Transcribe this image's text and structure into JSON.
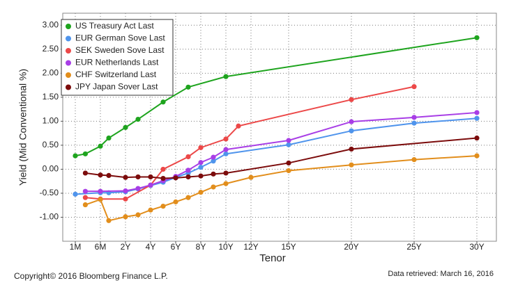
{
  "chart_data": {
    "type": "line",
    "x_label": "Tenor",
    "y_label": "Yield (Mid Conventional %)",
    "ylim": [
      -1.5,
      3.25
    ],
    "yticks": [
      {
        "value": -1,
        "label": "-1.00"
      },
      {
        "value": -0.5,
        "label": "-0.50"
      },
      {
        "value": 0,
        "label": "0.00"
      },
      {
        "value": 0.5,
        "label": "0.50"
      },
      {
        "value": 1,
        "label": "1.00"
      },
      {
        "value": 1.5,
        "label": "1.50"
      },
      {
        "value": 2,
        "label": "2.00"
      },
      {
        "value": 2.5,
        "label": "2.50"
      },
      {
        "value": 3,
        "label": "3.00"
      }
    ],
    "xticks": [
      {
        "value": 1,
        "label": "1M"
      },
      {
        "value": 6,
        "label": "6M"
      },
      {
        "value": 24,
        "label": "2Y"
      },
      {
        "value": 48,
        "label": "4Y"
      },
      {
        "value": 72,
        "label": "6Y"
      },
      {
        "value": 96,
        "label": "8Y"
      },
      {
        "value": 120,
        "label": "10Y"
      },
      {
        "value": 144,
        "label": "12Y"
      },
      {
        "value": 180,
        "label": "15Y"
      },
      {
        "value": 240,
        "label": "20Y"
      },
      {
        "value": 300,
        "label": "25Y"
      },
      {
        "value": 360,
        "label": "30Y"
      }
    ],
    "grid": true,
    "legend": "upper left",
    "series": [
      {
        "name": "US Treasury Act Last",
        "color": "#1ea41e",
        "x": [
          1,
          3,
          6,
          12,
          24,
          36,
          60,
          84,
          120,
          360
        ],
        "values": [
          0.28,
          0.32,
          0.48,
          0.65,
          0.87,
          1.04,
          1.4,
          1.71,
          1.93,
          2.74
        ]
      },
      {
        "name": "EUR German Sove Last",
        "color": "#4f94ec",
        "x": [
          1,
          6,
          12,
          24,
          36,
          48,
          60,
          72,
          84,
          96,
          108,
          120,
          180,
          240,
          300,
          360
        ],
        "values": [
          -0.52,
          -0.49,
          -0.49,
          -0.47,
          -0.41,
          -0.34,
          -0.27,
          -0.17,
          -0.08,
          0.04,
          0.17,
          0.32,
          0.51,
          0.8,
          0.96,
          1.06
        ]
      },
      {
        "name": "SEK Sweden Sove Last",
        "color": "#ec4848",
        "x": [
          3,
          6,
          24,
          48,
          60,
          84,
          96,
          120,
          132,
          240,
          300
        ],
        "values": [
          -0.59,
          -0.62,
          -0.62,
          -0.33,
          0.0,
          0.26,
          0.45,
          0.63,
          0.9,
          1.45,
          1.72
        ]
      },
      {
        "name": "EUR Netherlands Last",
        "color": "#a83ee6",
        "x": [
          3,
          6,
          24,
          36,
          48,
          60,
          72,
          84,
          96,
          108,
          120,
          180,
          240,
          300,
          360
        ],
        "values": [
          -0.46,
          -0.46,
          -0.45,
          -0.4,
          -0.33,
          -0.24,
          -0.15,
          -0.02,
          0.14,
          0.25,
          0.41,
          0.6,
          0.99,
          1.08,
          1.18
        ]
      },
      {
        "name": "CHF Switzerland Last",
        "color": "#e28e1c",
        "x": [
          3,
          6,
          12,
          24,
          36,
          48,
          60,
          72,
          84,
          96,
          108,
          120,
          144,
          180,
          240,
          300,
          360
        ],
        "values": [
          -0.74,
          -0.63,
          -1.07,
          -0.99,
          -0.95,
          -0.85,
          -0.77,
          -0.68,
          -0.59,
          -0.48,
          -0.37,
          -0.3,
          -0.17,
          -0.03,
          0.09,
          0.2,
          0.28
        ]
      },
      {
        "name": "JPY Japan Sover Last",
        "color": "#7c0c0c",
        "x": [
          3,
          6,
          12,
          24,
          36,
          48,
          60,
          72,
          84,
          96,
          108,
          120,
          180,
          240,
          360
        ],
        "values": [
          -0.08,
          -0.12,
          -0.13,
          -0.17,
          -0.16,
          -0.16,
          -0.19,
          -0.18,
          -0.16,
          -0.14,
          -0.1,
          -0.08,
          0.13,
          0.42,
          0.65
        ]
      }
    ],
    "copyright": "Copyright© 2016 Bloomberg Finance L.P.",
    "retrieved": "Data retrieved: March 16, 2016"
  }
}
